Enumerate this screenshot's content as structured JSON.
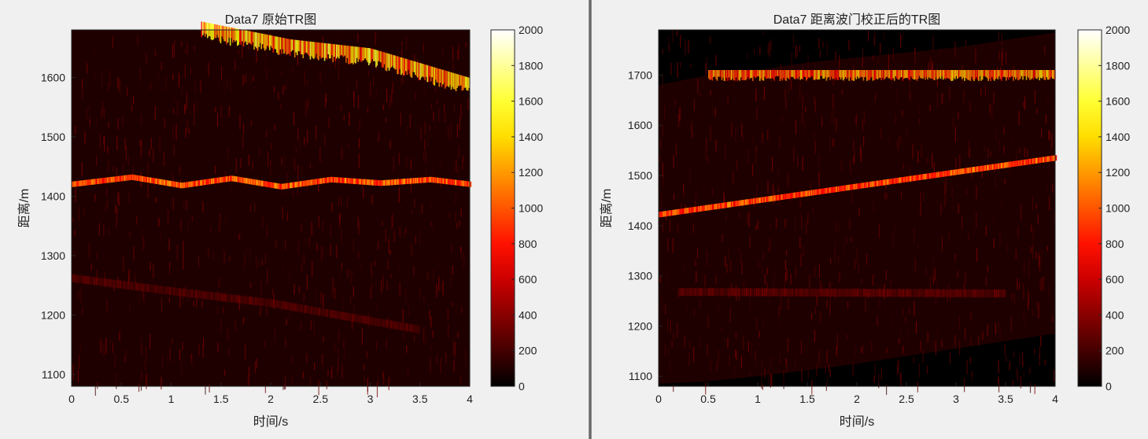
{
  "chart_data": [
    {
      "type": "heatmap",
      "title": "Data7 原始TR图",
      "xlabel": "时间/s",
      "ylabel": "距离/m",
      "xlim": [
        0,
        4
      ],
      "ylim": [
        1080,
        1680
      ],
      "x_ticks": [
        "0",
        "0.5",
        "1",
        "1.5",
        "2",
        "2.5",
        "3",
        "3.5",
        "4"
      ],
      "y_ticks": [
        "1100",
        "1200",
        "1300",
        "1400",
        "1500",
        "1600"
      ],
      "colormap": "hot",
      "clim": [
        0,
        2000
      ],
      "colorbar_ticks": [
        "0",
        "200",
        "400",
        "600",
        "800",
        "1000",
        "1200",
        "1400",
        "1600",
        "1800",
        "2000"
      ],
      "features": [
        {
          "kind": "stepped-track",
          "x": [
            0,
            0.6,
            1.1,
            1.6,
            2.1,
            2.6,
            3.1,
            3.6,
            4.0
          ],
          "y": [
            1420,
            1432,
            1418,
            1430,
            1416,
            1428,
            1422,
            1428,
            1420
          ],
          "intensity": 1150
        },
        {
          "kind": "band",
          "x": [
            1.3,
            2.2,
            3.0,
            3.5,
            4.0
          ],
          "y": [
            1680,
            1650,
            1635,
            1610,
            1585
          ],
          "intensity": 1500
        },
        {
          "kind": "faint-track",
          "x": [
            0,
            1,
            2,
            3,
            3.5
          ],
          "y": [
            1262,
            1240,
            1220,
            1190,
            1175
          ],
          "intensity": 380
        }
      ]
    },
    {
      "type": "heatmap",
      "title": "Data7 距离波门校正后的TR图",
      "xlabel": "时间/s",
      "ylabel": "距离/m",
      "xlim": [
        0,
        4
      ],
      "ylim": [
        1080,
        1790
      ],
      "x_ticks": [
        "0",
        "0.5",
        "1",
        "1.5",
        "2",
        "2.5",
        "3",
        "3.5",
        "4"
      ],
      "y_ticks": [
        "1100",
        "1200",
        "1300",
        "1400",
        "1500",
        "1600",
        "1700"
      ],
      "colormap": "hot",
      "clim": [
        0,
        2000
      ],
      "colorbar_ticks": [
        "0",
        "200",
        "400",
        "600",
        "800",
        "1000",
        "1200",
        "1400",
        "1600",
        "1800",
        "2000"
      ],
      "features": [
        {
          "kind": "linear-track",
          "x": [
            0,
            4
          ],
          "y": [
            1422,
            1535
          ],
          "intensity": 1100
        },
        {
          "kind": "band",
          "x": [
            0.5,
            4.0
          ],
          "y": [
            1700,
            1700
          ],
          "intensity": 1300
        },
        {
          "kind": "faint-track",
          "x": [
            0.2,
            3.5
          ],
          "y": [
            1268,
            1265
          ],
          "intensity": 420
        }
      ]
    }
  ]
}
